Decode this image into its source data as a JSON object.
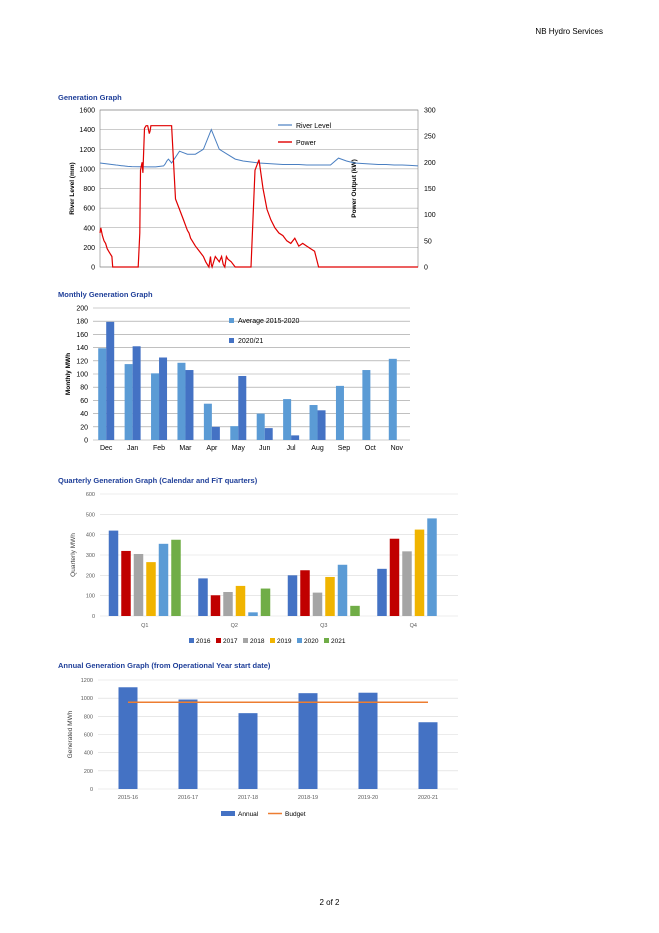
{
  "header": {
    "company": "NB Hydro Services"
  },
  "footer": {
    "page": "2 of 2"
  },
  "sections": {
    "generation": {
      "title": "Generation Graph"
    },
    "monthly": {
      "title": "Monthly Generation Graph"
    },
    "quarterly": {
      "title": "Quarterly Generation Graph (Calendar and FiT quarters)"
    },
    "annual": {
      "title": "Annual Generation Graph (from Operational Year start date)"
    }
  },
  "colors": {
    "river": "#4a7fc1",
    "power": "#e00000",
    "avg": "#5b9bd5",
    "y2021": "#4472c4",
    "q2016": "#4472c4",
    "q2017": "#c00000",
    "q2018": "#a5a5a5",
    "q2019": "#f0b400",
    "q2020": "#5b9bd5",
    "q2021": "#70ad47",
    "annual": "#4472c4",
    "budget": "#ed7d31"
  },
  "chart_data": [
    {
      "type": "line",
      "ylabel": "River Level (mm)",
      "y2label": "Power Output (kW)",
      "ylim": [
        0,
        1600
      ],
      "y2lim": [
        0,
        300
      ],
      "yticks": [
        "0",
        "200",
        "400",
        "600",
        "800",
        "1000",
        "1200",
        "1400",
        "1600"
      ],
      "y2ticks": [
        "0",
        "50",
        "100",
        "150",
        "200",
        "250",
        "300"
      ],
      "legend": [
        "River Level",
        "Power"
      ],
      "legend_position": "top-right",
      "series": [
        {
          "name": "River Level",
          "x": [
            0,
            5,
            10,
            15,
            20,
            22,
            23,
            24,
            25,
            26,
            27,
            28,
            29,
            30,
            32,
            35,
            40,
            50,
            60,
            70,
            80,
            82,
            84,
            86,
            88,
            90,
            100,
            110,
            120,
            130,
            140,
            150,
            160,
            170,
            180,
            190,
            200,
            210,
            220,
            230,
            240,
            250,
            260,
            270,
            280,
            290,
            300,
            310,
            320,
            330,
            340,
            350,
            360,
            370,
            380,
            390,
            400
          ],
          "y": [
            1060,
            1055,
            1050,
            1045,
            1040,
            1038,
            1036,
            1035,
            1034,
            1033,
            1032,
            1031,
            1030,
            1030,
            1028,
            1025,
            1023,
            1022,
            1020,
            1020,
            1030,
            1050,
            1080,
            1100,
            1080,
            1060,
            1180,
            1150,
            1150,
            1200,
            1400,
            1200,
            1150,
            1100,
            1080,
            1070,
            1060,
            1055,
            1050,
            1045,
            1045,
            1045,
            1040,
            1040,
            1040,
            1040,
            1110,
            1080,
            1060,
            1055,
            1050,
            1045,
            1045,
            1040,
            1040,
            1035,
            1030
          ]
        },
        {
          "name": "Power",
          "x": [
            0,
            1,
            3,
            5,
            7,
            9,
            11,
            13,
            15,
            16,
            20,
            30,
            40,
            48,
            50,
            51,
            53,
            54,
            56,
            58,
            60,
            62,
            63,
            64,
            65,
            67,
            69,
            71,
            73,
            75,
            80,
            85,
            90,
            95,
            100,
            105,
            110,
            112,
            113,
            114,
            116,
            118,
            120,
            125,
            130,
            133,
            135,
            137,
            139,
            140,
            141,
            145,
            150,
            153,
            155,
            157,
            159,
            161,
            165,
            170,
            175,
            180,
            185,
            190,
            195,
            200,
            205,
            210,
            215,
            220,
            225,
            230,
            235,
            240,
            245,
            250,
            255,
            260,
            265,
            270,
            275,
            280,
            300,
            320,
            340,
            360,
            380,
            400
          ],
          "y": [
            65,
            75,
            60,
            50,
            45,
            35,
            30,
            25,
            20,
            0,
            0,
            0,
            0,
            0,
            65,
            185,
            200,
            180,
            265,
            270,
            270,
            255,
            260,
            270,
            270,
            270,
            270,
            270,
            270,
            270,
            270,
            270,
            270,
            130,
            110,
            90,
            70,
            65,
            60,
            55,
            50,
            45,
            40,
            30,
            20,
            10,
            5,
            0,
            20,
            5,
            0,
            20,
            10,
            20,
            5,
            0,
            20,
            15,
            10,
            0,
            0,
            0,
            0,
            0,
            185,
            205,
            150,
            110,
            90,
            75,
            65,
            60,
            50,
            45,
            55,
            40,
            45,
            40,
            35,
            30,
            0,
            0,
            0,
            0,
            0,
            0,
            0,
            0
          ]
        }
      ]
    },
    {
      "type": "bar",
      "ylabel": "Monthly MWh",
      "ylim": [
        0,
        200
      ],
      "yticks": [
        "0",
        "20",
        "40",
        "60",
        "80",
        "100",
        "120",
        "140",
        "160",
        "180",
        "200"
      ],
      "categories": [
        "Dec",
        "Jan",
        "Feb",
        "Mar",
        "Apr",
        "May",
        "Jun",
        "Jul",
        "Aug",
        "Sep",
        "Oct",
        "Nov"
      ],
      "legend_position": "top-right",
      "series": [
        {
          "name": "Average 2015-2020",
          "values": [
            139,
            115,
            101,
            117,
            55,
            21,
            40,
            62,
            53,
            82,
            106,
            123
          ]
        },
        {
          "name": "2020/21",
          "values": [
            179,
            142,
            125,
            106,
            20,
            97,
            18,
            7,
            45,
            null,
            null,
            null
          ]
        }
      ]
    },
    {
      "type": "bar",
      "ylabel": "Quarterly MWh",
      "ylim": [
        0,
        600
      ],
      "yticks": [
        "0",
        "100",
        "200",
        "300",
        "400",
        "500",
        "600"
      ],
      "categories": [
        "Q1",
        "Q2",
        "Q3",
        "Q4"
      ],
      "legend_position": "bottom",
      "series": [
        {
          "name": "2016",
          "values": [
            420,
            185,
            200,
            232
          ]
        },
        {
          "name": "2017",
          "values": [
            320,
            102,
            225,
            380
          ]
        },
        {
          "name": "2018",
          "values": [
            305,
            118,
            115,
            318
          ]
        },
        {
          "name": "2019",
          "values": [
            265,
            148,
            192,
            425
          ]
        },
        {
          "name": "2020",
          "values": [
            355,
            18,
            252,
            480
          ]
        },
        {
          "name": "2021",
          "values": [
            375,
            135,
            50,
            null
          ]
        }
      ]
    },
    {
      "type": "bar",
      "ylabel": "Generated MWh",
      "ylim": [
        0,
        1200
      ],
      "yticks": [
        "0",
        "200",
        "400",
        "600",
        "800",
        "1000",
        "1200"
      ],
      "categories": [
        "2015-16",
        "2016-17",
        "2017-18",
        "2018-19",
        "2019-20",
        "2020-21"
      ],
      "legend_position": "bottom",
      "series": [
        {
          "name": "Annual",
          "values": [
            1120,
            985,
            835,
            1055,
            1060,
            735
          ]
        },
        {
          "name": "Budget",
          "values": [
            955,
            955,
            955,
            955,
            955,
            955
          ]
        }
      ]
    }
  ]
}
